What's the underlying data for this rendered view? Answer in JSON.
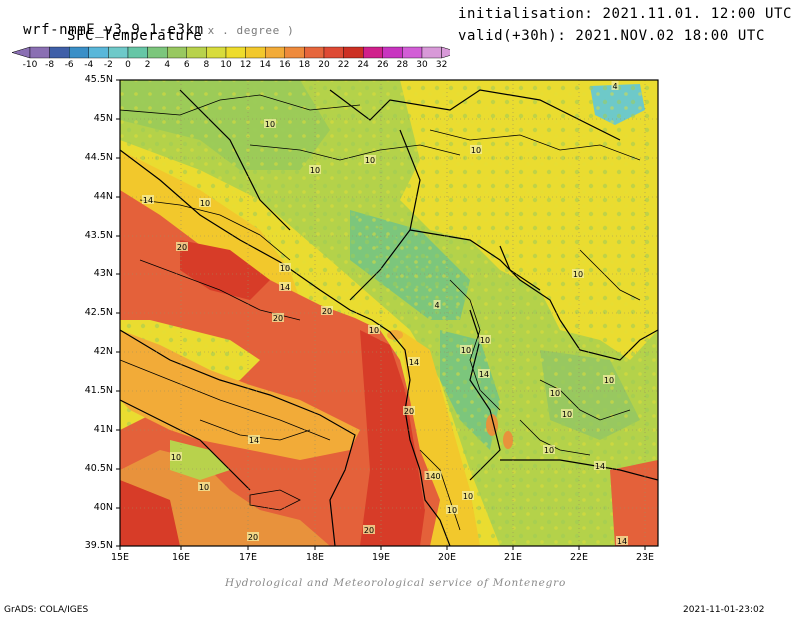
{
  "header": {
    "model": "wrf-nmmE_v3.9.1-e3km",
    "projection": "x . degree )",
    "field": "SFC Temperature",
    "init": "initialisation: 2021.11.01. 12:00 UTC",
    "valid": "valid(+30h): 2021.NOV.02 18:00 UTC"
  },
  "colorbar": {
    "labels": [
      "-10",
      "-8",
      "-6",
      "-4",
      "-2",
      "0",
      "2",
      "4",
      "6",
      "8",
      "10",
      "12",
      "14",
      "16",
      "18",
      "20",
      "22",
      "24",
      "26",
      "28",
      "30",
      "32"
    ],
    "colors": [
      "#8a6fb3",
      "#3f5fa8",
      "#3a8fc7",
      "#59b7d9",
      "#6ec9c9",
      "#66c6a6",
      "#7cc67c",
      "#98c860",
      "#b8d24c",
      "#d8dc3c",
      "#eedc2c",
      "#f2c82c",
      "#f2ab38",
      "#ee8a3c",
      "#e6663c",
      "#de4a34",
      "#cc3024",
      "#d0208c",
      "#c834c0",
      "#d25ed6",
      "#d899d8"
    ]
  },
  "axes": {
    "y_labels": [
      "45.5N",
      "45N",
      "44.5N",
      "44N",
      "43.5N",
      "43N",
      "42.5N",
      "42N",
      "41.5N",
      "41N",
      "40.5N",
      "40N",
      "39.5N"
    ],
    "x_labels": [
      "15E",
      "16E",
      "17E",
      "18E",
      "19E",
      "20E",
      "21E",
      "22E",
      "23E"
    ]
  },
  "contour_labels": [
    "10",
    "10",
    "10",
    "10",
    "14",
    "10",
    "20",
    "10",
    "14",
    "20",
    "20",
    "10",
    "14",
    "14",
    "10",
    "10",
    "4",
    "10",
    "10",
    "10",
    "10",
    "10",
    "10",
    "20",
    "14",
    "14",
    "10",
    "4",
    "14",
    "20",
    "10",
    "10",
    "20",
    "140"
  ],
  "credit": "Hydrological and Meteorological service of Montenegro",
  "footer": {
    "left": "GrADS: COLA/IGES",
    "right": "2021-11-01-23:02"
  }
}
